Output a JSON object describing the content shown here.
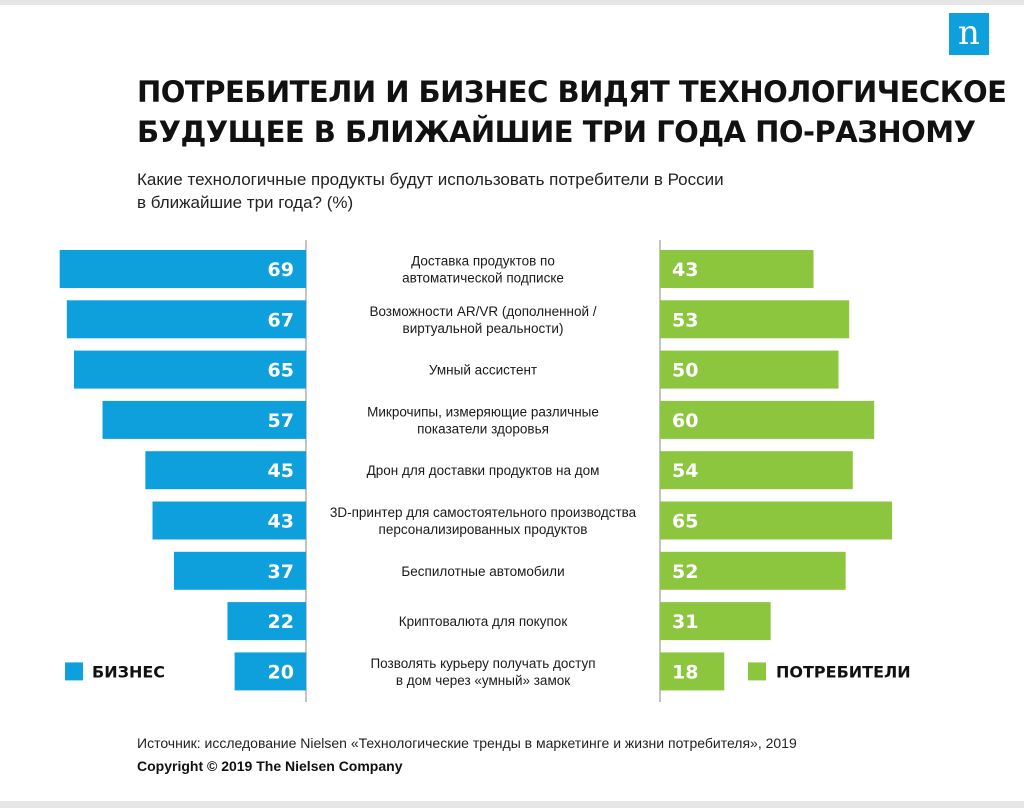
{
  "logo": {
    "letter": "n"
  },
  "title": {
    "line1": "ПОТРЕБИТЕЛИ И БИЗНЕС ВИДЯТ ТЕХНОЛОГИЧЕСКОЕ",
    "line2": "БУДУЩЕЕ В БЛИЖАЙШИЕ ТРИ ГОДА ПО-РАЗНОМУ"
  },
  "subtitle": {
    "line1": "Какие технологичные  продукты будут использовать потребители в России",
    "line2": "в ближайшие три года? (%)"
  },
  "footer": {
    "source": "Источник: исследование Nielsen «Технологические тренды в маркетинге и жизни потребителя», 2019",
    "copyright": "Copyright © 2019 The Nielsen Company"
  },
  "chart_data": {
    "type": "bar",
    "orientation": "horizontal-butterfly",
    "categories": [
      [
        "Доставка продуктов по",
        "автоматической подписке"
      ],
      [
        "Возможности AR/VR (дополненной /",
        "виртуальной реальности)"
      ],
      [
        "Умный ассистент"
      ],
      [
        "Микрочипы, измеряющие различные",
        "показатели здоровья"
      ],
      [
        "Дрон для доставки продуктов на дом"
      ],
      [
        "3D-принтер для самостоятельного производства",
        "персонализированных продуктов"
      ],
      [
        "Беспилотные автомобили"
      ],
      [
        "Криптовалюта для покупок"
      ],
      [
        "Позволять курьеру получать доступ",
        "в дом через «умный» замок"
      ]
    ],
    "series": [
      {
        "name": "БИЗНЕС",
        "side": "left",
        "color": "#0ea0dc",
        "values": [
          69,
          67,
          65,
          57,
          45,
          43,
          37,
          22,
          20
        ]
      },
      {
        "name": "ПОТРЕБИТЕЛИ",
        "side": "right",
        "color": "#8cc63f",
        "values": [
          43,
          53,
          50,
          60,
          54,
          65,
          52,
          31,
          18
        ]
      }
    ],
    "legend": {
      "left": "bottom-left",
      "right": "bottom-right"
    },
    "grid": false
  }
}
